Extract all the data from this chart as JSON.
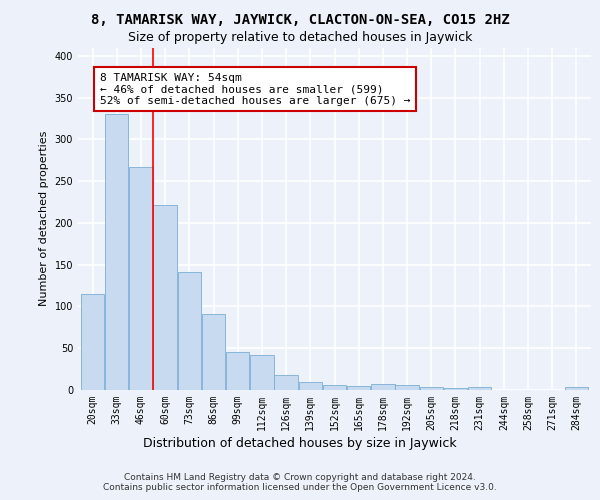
{
  "title": "8, TAMARISK WAY, JAYWICK, CLACTON-ON-SEA, CO15 2HZ",
  "subtitle": "Size of property relative to detached houses in Jaywick",
  "xlabel": "Distribution of detached houses by size in Jaywick",
  "ylabel": "Number of detached properties",
  "categories": [
    "20sqm",
    "33sqm",
    "46sqm",
    "60sqm",
    "73sqm",
    "86sqm",
    "99sqm",
    "112sqm",
    "126sqm",
    "139sqm",
    "152sqm",
    "165sqm",
    "178sqm",
    "192sqm",
    "205sqm",
    "218sqm",
    "231sqm",
    "244sqm",
    "258sqm",
    "271sqm",
    "284sqm"
  ],
  "values": [
    115,
    330,
    267,
    222,
    141,
    91,
    45,
    42,
    18,
    9,
    6,
    5,
    7,
    6,
    4,
    2,
    4,
    0,
    0,
    0,
    4
  ],
  "bar_color": "#c8daf0",
  "bar_edge_color": "#7aadd4",
  "annotation_text": "8 TAMARISK WAY: 54sqm\n← 46% of detached houses are smaller (599)\n52% of semi-detached houses are larger (675) →",
  "annotation_box_color": "#ffffff",
  "annotation_box_edge": "#cc0000",
  "footer": "Contains HM Land Registry data © Crown copyright and database right 2024.\nContains public sector information licensed under the Open Government Licence v3.0.",
  "ylim": [
    0,
    410
  ],
  "background_color": "#edf2fa",
  "grid_color": "#ffffff",
  "title_fontsize": 10,
  "subtitle_fontsize": 9,
  "ylabel_fontsize": 8,
  "xlabel_fontsize": 9,
  "tick_fontsize": 7,
  "footer_fontsize": 6.5,
  "annot_fontsize": 8,
  "red_line_index": 2.5
}
